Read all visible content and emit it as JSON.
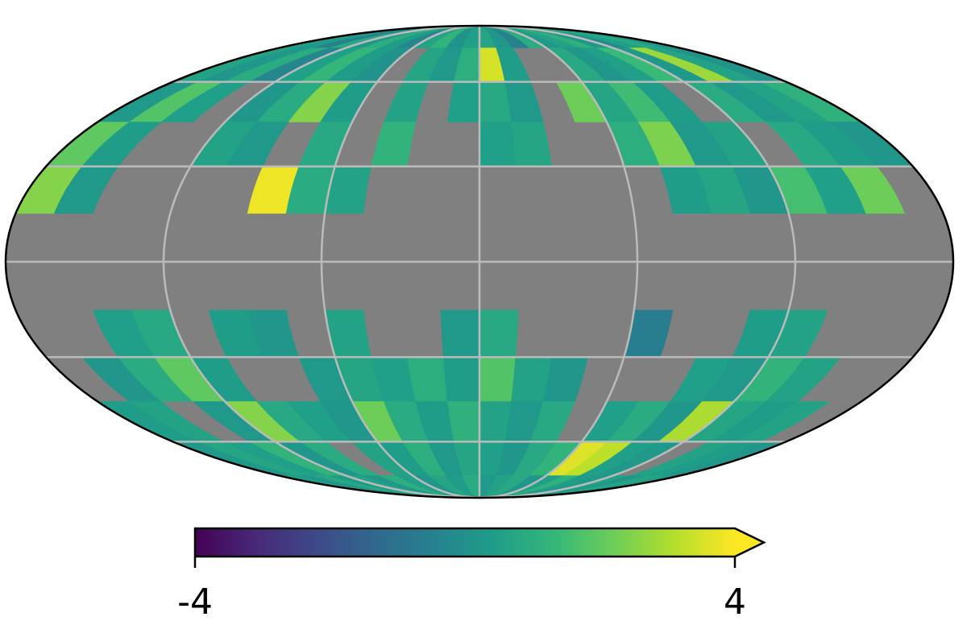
{
  "map": {
    "type": "healpix",
    "projection": "mollweide",
    "graticule": true,
    "values": [
      [
        0.5,
        0.3,
        -0.5,
        0.8,
        0.2,
        1,
        0.4,
        -0.3,
        0.6,
        1.2,
        0.1,
        0.5,
        0.7,
        0.2,
        -0.4,
        0.9,
        0.3,
        0.6,
        1.1,
        0.2,
        -0.2,
        0.5,
        0.8,
        0.3
      ],
      [
        0.6,
        0.2,
        0.9,
        -0.3,
        0.5,
        1.3,
        0.4,
        0.1,
        null,
        0.7,
        0.3,
        1,
        3.5,
        0.4,
        null,
        null,
        0.8,
        0.2,
        0.5,
        1.4,
        0.3,
        2.8,
        0.6,
        0.1
      ],
      [
        0.3,
        1.8,
        0.5,
        null,
        0.2,
        0.9,
        2.5,
        0.4,
        null,
        0.6,
        null,
        0.5,
        0.8,
        0.3,
        null,
        2.2,
        0.7,
        1.5,
        0.4,
        null,
        0.9,
        0.3,
        0.6,
        1.1
      ],
      [
        2.0,
        0.4,
        null,
        null,
        0.6,
        0.3,
        null,
        0.8,
        null,
        1.2,
        null,
        null,
        0.5,
        0.7,
        null,
        null,
        1.0,
        2.4,
        0.3,
        0.6,
        null,
        0.8,
        0.4,
        0.2
      ],
      [
        2.5,
        0.3,
        null,
        null,
        null,
        null,
        3.8,
        0.9,
        0.6,
        null,
        null,
        null,
        null,
        null,
        null,
        null,
        null,
        0.4,
        0.7,
        0.2,
        1.6,
        0.5,
        2.2,
        null
      ],
      [
        null,
        null,
        null,
        null,
        null,
        null,
        null,
        null,
        null,
        null,
        null,
        null,
        null,
        null,
        null,
        null,
        null,
        null,
        null,
        null,
        null,
        null,
        null,
        null
      ],
      [
        null,
        null,
        null,
        null,
        null,
        null,
        null,
        null,
        null,
        null,
        null,
        null,
        null,
        null,
        null,
        null,
        null,
        null,
        null,
        null,
        null,
        null,
        null,
        null
      ],
      [
        null,
        null,
        0.5,
        0.8,
        null,
        0.4,
        0.2,
        null,
        0.6,
        null,
        null,
        0.3,
        0.8,
        null,
        null,
        null,
        -0.6,
        null,
        null,
        0.4,
        0.6,
        null,
        null,
        null
      ],
      [
        null,
        0.2,
        0.9,
        2.0,
        0.4,
        null,
        null,
        0.3,
        0.7,
        0.5,
        1.0,
        0.4,
        1.8,
        0.6,
        0.2,
        null,
        null,
        null,
        0.5,
        0.3,
        1.2,
        0.6,
        null,
        null
      ],
      [
        0.4,
        0.6,
        null,
        0.3,
        2.5,
        0.8,
        0.5,
        0.2,
        2.2,
        0.9,
        0.4,
        1.1,
        0.6,
        0.3,
        0.8,
        null,
        0.5,
        0.9,
        0.2,
        3.0,
        0.7,
        0.4,
        0.6,
        null
      ],
      [
        0.3,
        0.7,
        0.5,
        1.2,
        0.2,
        0.9,
        null,
        0.6,
        0.4,
        1.0,
        0.3,
        0.7,
        0.5,
        0.2,
        0.8,
        1.2,
        3.6,
        3.2,
        0.5,
        0.3,
        null,
        0.6,
        0.4,
        0.2
      ],
      [
        0.5,
        0.2,
        0.8,
        0.4,
        0.6,
        0.3,
        1.0,
        0.5,
        0.2,
        0.7,
        0.4,
        0.9,
        0.3,
        0.6,
        0.8,
        0.2,
        0.5,
        1.1,
        0.4,
        0.3,
        0.6,
        0.2,
        0.7,
        0.5
      ]
    ],
    "colorbar": {
      "cmap": "viridis",
      "vmin": -4,
      "vmax": 4,
      "extend": "max",
      "ticks": [
        -4,
        4
      ]
    }
  }
}
